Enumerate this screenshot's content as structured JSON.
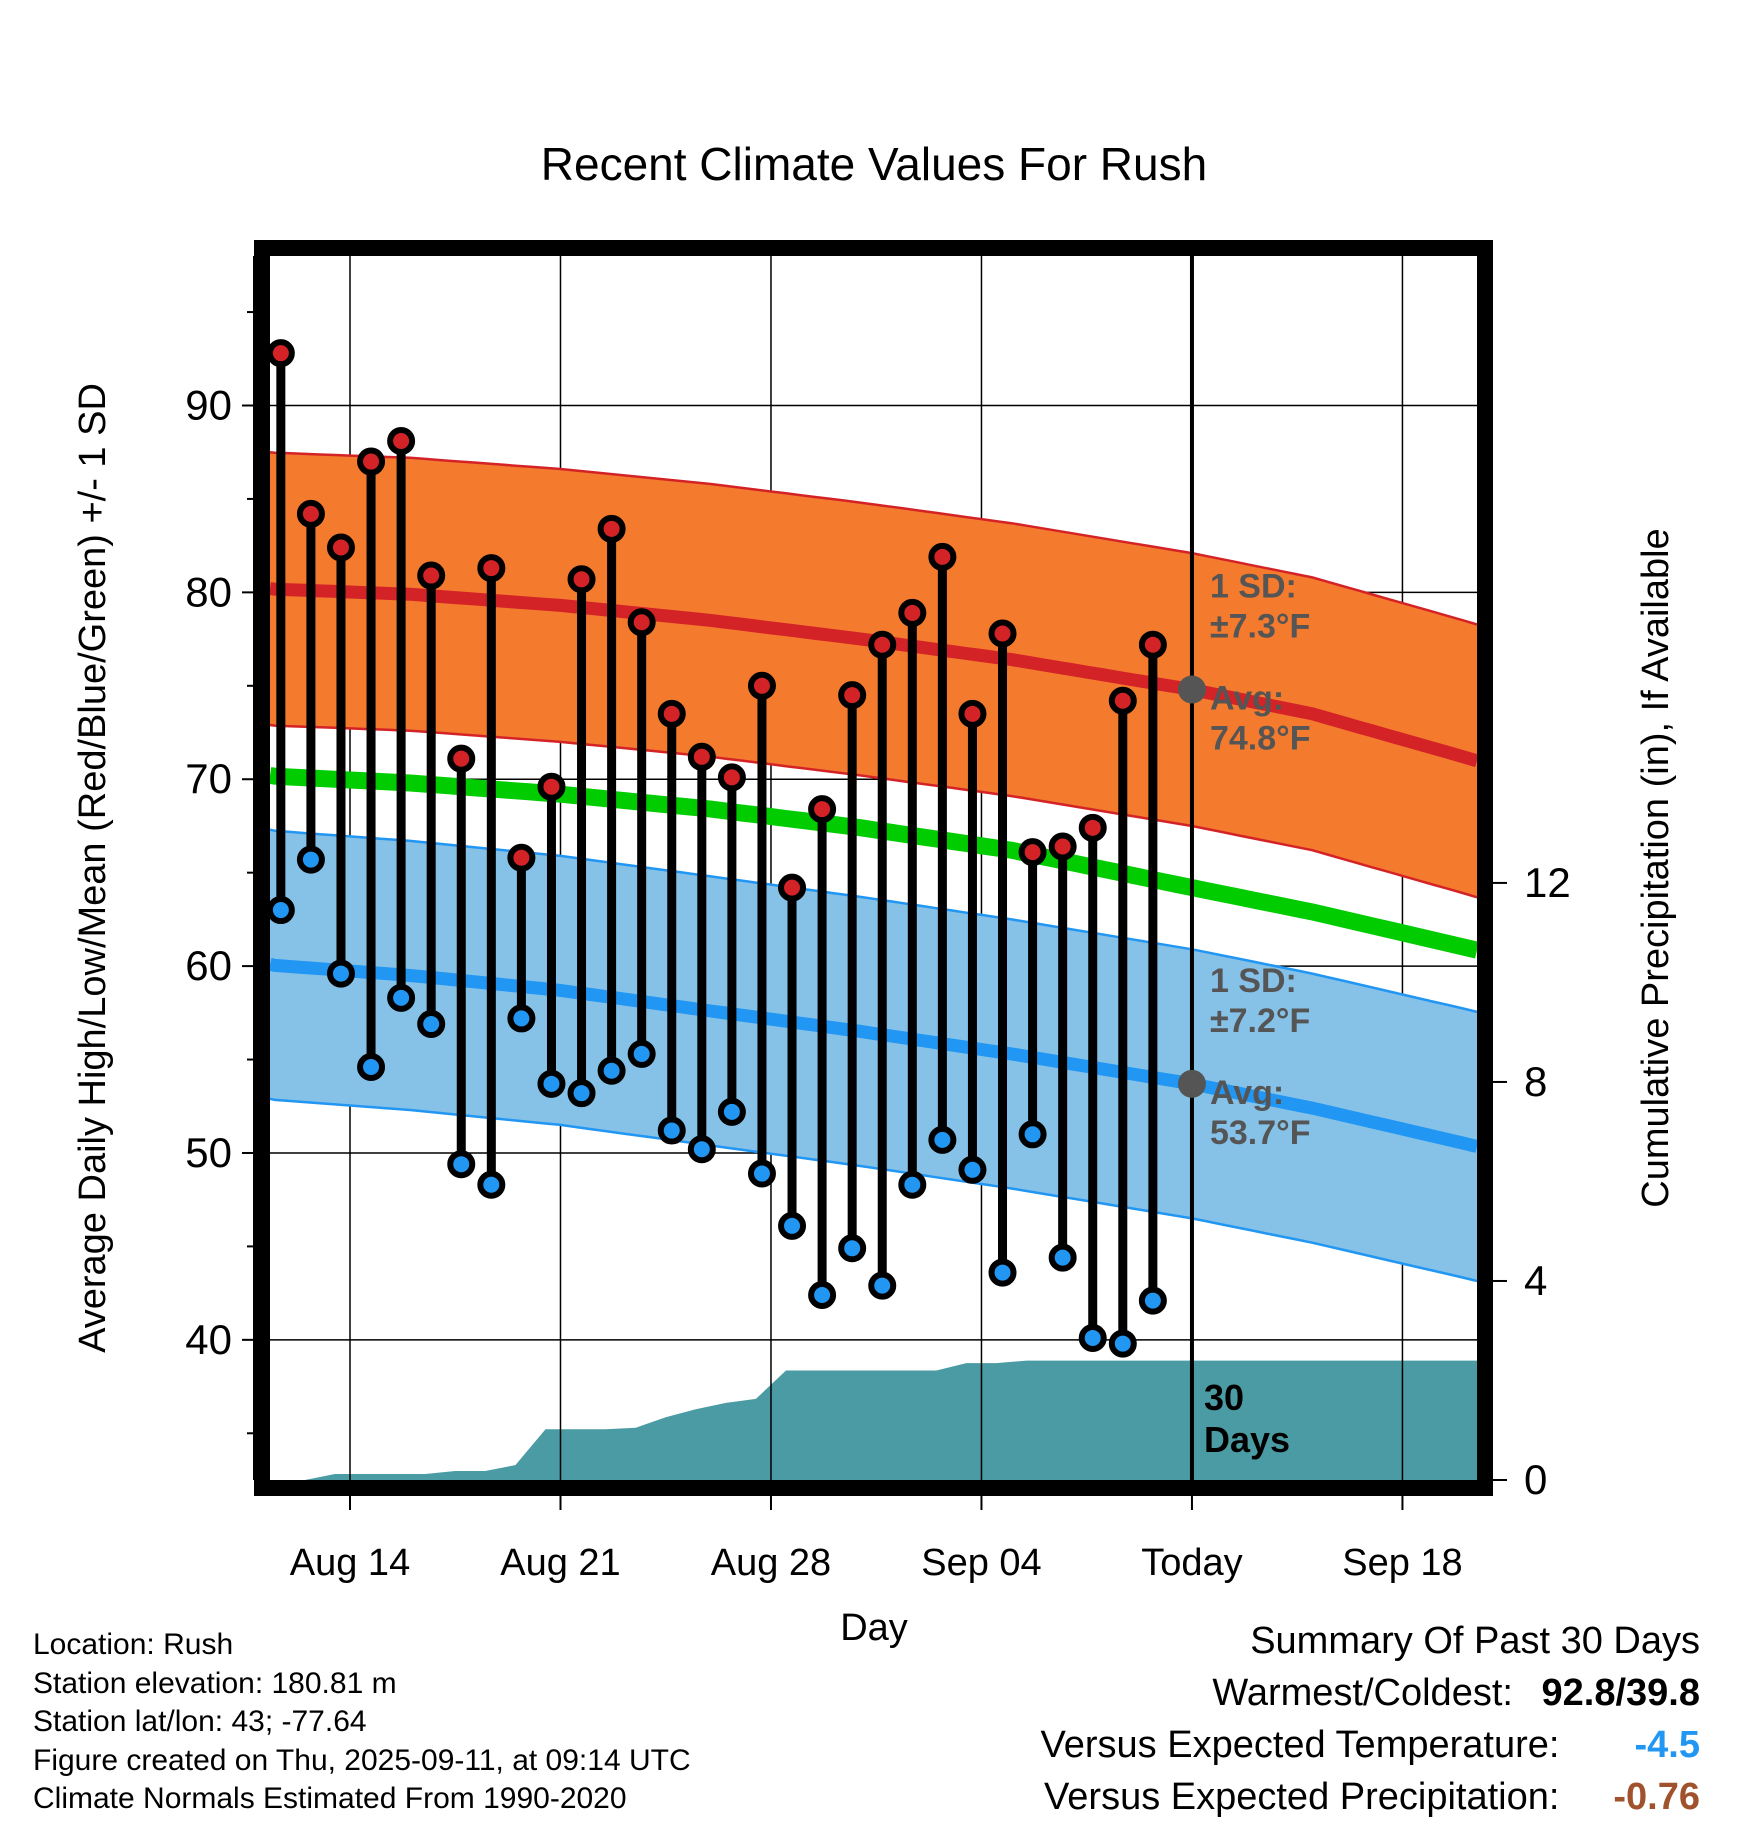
{
  "chart_data": {
    "type": "line",
    "title": "Recent Climate Values For Rush",
    "xlabel": "Day",
    "ylabel": "Average Daily High/Low/Mean (Red/Blue/Green) +/- 1 SD",
    "y2label": "Cumulative Precipitation (in), If Available",
    "ylim": [
      32.5,
      98
    ],
    "y2lim": [
      0,
      24.6
    ],
    "xlim": [
      0,
      40.9
    ],
    "x_ticks": [
      {
        "x": 3,
        "label": "Aug 14"
      },
      {
        "x": 10,
        "label": "Aug 21"
      },
      {
        "x": 17,
        "label": "Aug 28"
      },
      {
        "x": 24,
        "label": "Sep 04"
      },
      {
        "x": 31,
        "label": "Today"
      },
      {
        "x": 38,
        "label": "Sep 18"
      }
    ],
    "y_ticks": [
      40,
      50,
      60,
      70,
      80,
      90
    ],
    "y2_ticks": [
      0,
      4,
      8,
      12
    ],
    "today_x": 31,
    "today_label": "30\nDays",
    "grid": true,
    "series": [
      {
        "name": "High",
        "color": "#d42327",
        "x": [
          0.7,
          1.7,
          2.7,
          3.7,
          4.7,
          5.7,
          6.7,
          7.7,
          8.7,
          9.7,
          10.7,
          11.7,
          12.7,
          13.7,
          14.7,
          15.7,
          16.7,
          17.7,
          18.7,
          19.7,
          20.7,
          21.7,
          22.7,
          23.7,
          24.7,
          25.7,
          26.7,
          27.7,
          28.7,
          29.7
        ],
        "values": [
          92.8,
          84.2,
          82.4,
          87.0,
          88.1,
          80.9,
          71.1,
          81.3,
          65.8,
          69.6,
          80.7,
          83.4,
          78.4,
          73.5,
          71.2,
          70.1,
          75.0,
          64.2,
          68.4,
          74.5,
          77.2,
          78.9,
          81.9,
          73.5,
          77.8,
          66.1,
          66.4,
          67.4,
          74.2,
          77.2
        ]
      },
      {
        "name": "Low",
        "color": "#2196f3",
        "x": [
          0.7,
          1.7,
          2.7,
          3.7,
          4.7,
          5.7,
          6.7,
          7.7,
          8.7,
          9.7,
          10.7,
          11.7,
          12.7,
          13.7,
          14.7,
          15.7,
          16.7,
          17.7,
          18.7,
          19.7,
          20.7,
          21.7,
          22.7,
          23.7,
          24.7,
          25.7,
          26.7,
          27.7,
          28.7,
          29.7
        ],
        "values": [
          63.0,
          65.7,
          59.6,
          54.6,
          58.3,
          56.9,
          49.4,
          48.3,
          57.2,
          53.7,
          53.2,
          54.4,
          55.3,
          51.2,
          50.2,
          52.2,
          48.9,
          46.1,
          42.4,
          44.9,
          42.9,
          48.3,
          50.7,
          49.1,
          43.6,
          51.0,
          44.4,
          40.1,
          39.8,
          42.1
        ]
      }
    ],
    "normals": {
      "x": [
        0,
        5,
        10,
        15,
        20,
        25,
        31,
        35,
        40.9
      ],
      "high_mean": [
        80.2,
        79.9,
        79.3,
        78.5,
        77.5,
        76.4,
        74.8,
        73.5,
        70.8
      ],
      "low_mean": [
        60.1,
        59.5,
        58.7,
        57.6,
        56.5,
        55.3,
        53.7,
        52.4,
        50.2
      ],
      "avg_mean": [
        70.2,
        69.8,
        69.2,
        68.4,
        67.4,
        66.2,
        64.2,
        62.9,
        60.7
      ],
      "high_sd": 7.3,
      "low_sd": 7.2
    },
    "precipitation": {
      "x": [
        0.5,
        1.5,
        2.5,
        3.5,
        4.5,
        5.5,
        6.5,
        7.5,
        8.5,
        9.5,
        10.5,
        11.5,
        12.5,
        13.5,
        14.5,
        15.5,
        16.5,
        17.5,
        18.5,
        19.5,
        20.5,
        21.5,
        22.5,
        23.5,
        24.5,
        25.5,
        26.5,
        27.5,
        28.5,
        29.5,
        30.5,
        40.9
      ],
      "values": [
        0.0,
        0.0,
        0.12,
        0.12,
        0.12,
        0.12,
        0.18,
        0.18,
        0.3,
        1.02,
        1.02,
        1.02,
        1.05,
        1.26,
        1.42,
        1.55,
        1.63,
        2.2,
        2.2,
        2.2,
        2.2,
        2.2,
        2.2,
        2.35,
        2.35,
        2.4,
        2.4,
        2.4,
        2.4,
        2.4,
        2.4,
        2.4
      ]
    },
    "annotations": [
      {
        "label": "1 SD:",
        "value": "±7.3°F",
        "series": "High"
      },
      {
        "label": "Avg:",
        "value": "74.8°F",
        "series": "High"
      },
      {
        "label": "1 SD:",
        "value": "±7.2°F",
        "series": "Low"
      },
      {
        "label": "Avg:",
        "value": "53.7°F",
        "series": "Low"
      }
    ],
    "colors": {
      "high_band": "#f47a2e",
      "high_line": "#d42327",
      "low_band": "#86c2e8",
      "low_line": "#2196f3",
      "mean_line": "#00cc00",
      "precip": "#4a9ba3",
      "marker_gray": "#555555"
    }
  },
  "location_info": [
    "Location: Rush",
    "Station elevation: 180.81 m",
    "Station lat/lon: 43; -77.64",
    "Figure created on Thu, 2025-09-11, at 09:14 UTC",
    "Climate Normals Estimated From 1990-2020"
  ],
  "summary": {
    "title": "Summary Of Past 30 Days",
    "warmest_label": "Warmest/Coldest:",
    "warmest_value": "92.8/39.8",
    "temp_label": "Versus Expected Temperature:",
    "temp_value": "-4.5",
    "temp_color": "#2196f3",
    "precip_label": "Versus Expected Precipitation:",
    "precip_value": "-0.76",
    "precip_color": "#a0522d"
  }
}
